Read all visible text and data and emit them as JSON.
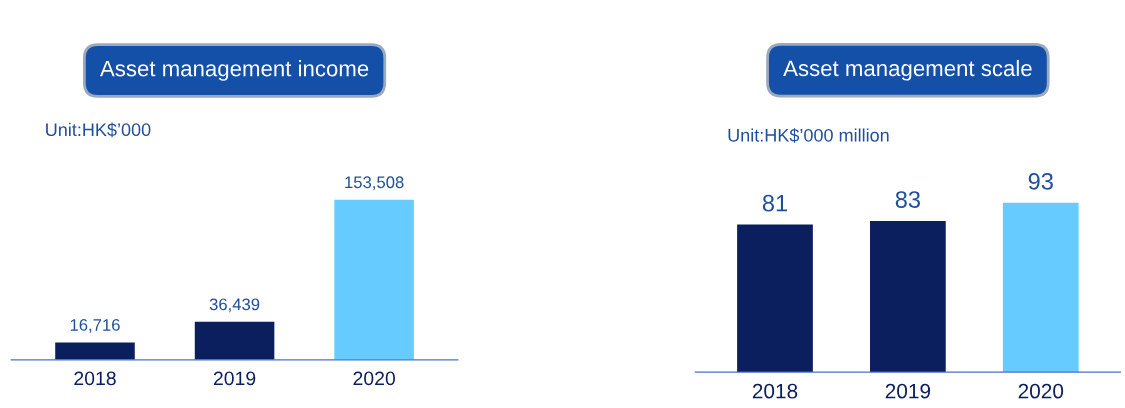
{
  "chart_data": [
    {
      "type": "bar",
      "title": "Asset management income",
      "subtitle": "Unit:HK$’000",
      "categories": [
        "2018",
        "2019",
        "2020"
      ],
      "values": [
        16716,
        36439,
        153508
      ],
      "colors": [
        "#0b1f5e",
        "#0b1f5e",
        "#66ccff"
      ],
      "value_labels": [
        "16,716",
        "36,439",
        "153,508"
      ],
      "tick_labels": "x",
      "grid": false,
      "legend": false
    },
    {
      "type": "bar",
      "title": "Asset management scale",
      "subtitle": "Unit:HK$’000 million",
      "categories": [
        "2018",
        "2019",
        "2020"
      ],
      "values": [
        81,
        83,
        93
      ],
      "colors": [
        "#0b1f5e",
        "#0b1f5e",
        "#66ccff"
      ],
      "data_labels": true,
      "tick_labels": "x",
      "grid": false,
      "legend": false
    }
  ]
}
